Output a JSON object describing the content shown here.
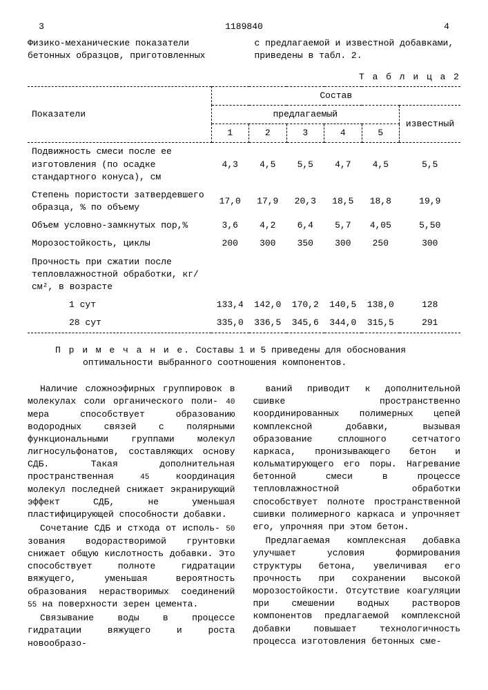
{
  "header": {
    "page_left": "3",
    "doc_number": "1189840",
    "page_right": "4"
  },
  "intro": {
    "left": "Физико-механические показатели бетонных образцов, приготовленных",
    "right": "с предлагаемой и известной добавками, приведены в табл. 2."
  },
  "table": {
    "label": "Т а б л и ц а  2",
    "head": {
      "indicators": "Показатели",
      "composition": "Состав",
      "proposed": "предлагаемый",
      "known": "известный",
      "cols": [
        "1",
        "2",
        "3",
        "4",
        "5"
      ]
    },
    "rows": [
      {
        "label": "Подвижность смеси после ее изготовления (по осадке стандартного конуса), см",
        "vals": [
          "4,3",
          "4,5",
          "5,5",
          "4,7",
          "4,5",
          "5,5"
        ]
      },
      {
        "label": "Степень пористости затвердевшего образца, % по объему",
        "vals": [
          "17,0",
          "17,9",
          "20,3",
          "18,5",
          "18,8",
          "19,9"
        ]
      },
      {
        "label": "Объем условно-замкнутых пор,%",
        "vals": [
          "3,6",
          "4,2",
          "6,4",
          "5,7",
          "4,05",
          "5,50"
        ]
      },
      {
        "label": "Морозостойкость, циклы",
        "vals": [
          "200",
          "300",
          "350",
          "300",
          "250",
          "300"
        ]
      },
      {
        "label": "Прочность при сжатии после тепловлажностной обработки, кг/см², в возрасте",
        "vals": [
          "",
          "",
          "",
          "",
          "",
          ""
        ]
      },
      {
        "label": "1 сут",
        "indent": true,
        "vals": [
          "133,4",
          "142,0",
          "170,2",
          "140,5",
          "138,0",
          "128"
        ]
      },
      {
        "label": "28 сут",
        "indent": true,
        "vals": [
          "335,0",
          "336,5",
          "345,6",
          "344,0",
          "315,5",
          "291"
        ]
      }
    ]
  },
  "note": {
    "label": "П р и м е ч а н и е.",
    "text": "Составы 1 и 5 приведены для обоснования оптимальности выбранного соотношения компонентов."
  },
  "body": {
    "p1a": "Наличие сложноэфирных группировок в молекулах соли органического поли-",
    "ln40": "40",
    "p1b": "мера способствует образованию водородных связей с полярными функциональными группами молекул лигносульфонатов, составляющих основу СДБ. Такая дополнительная пространственная",
    "ln45": "45",
    "p1c": "координация молекул последней снижает экранирующий эффект СДБ, не уменьшая пластифицирующей способности добавки.",
    "p2a": "Сочетание СДБ и стхода от исполь-",
    "ln50": "50",
    "p2b": "зования водорастворимой грунтовки снижает общую кислотность добавки. Это способствует полноте гидратации вяжущего, уменьшая вероятность образования нерастворимых соединений",
    "ln55": "55",
    "p2c": "на поверхности зерен цемента.",
    "p3": "Связывание воды в процессе гидратации вяжущего и роста новообразо-",
    "p4": "ваний приводит к дополнительной сшивке пространственно координированных полимерных цепей комплексной добавки, вызывая образование сплошного сетчатого каркаса, пронизывающего бетон и кольматирующего его поры. Нагревание бетонной смеси в процессе тепловлажностной обработки способствует полноте пространственной сшивки полимерного каркаса и упрочняет его, упрочняя при этом бетон.",
    "p5": "Предлагаемая комплексная добавка улучшает условия формирования структуры бетона, увеличивая его прочность при сохранении высокой морозостойкости. Отсутствие коагуляции при смешении водных растворов компонентов предлагаемой комплексной добавки повышает технологичность процесса изготовления бетонных сме-"
  }
}
